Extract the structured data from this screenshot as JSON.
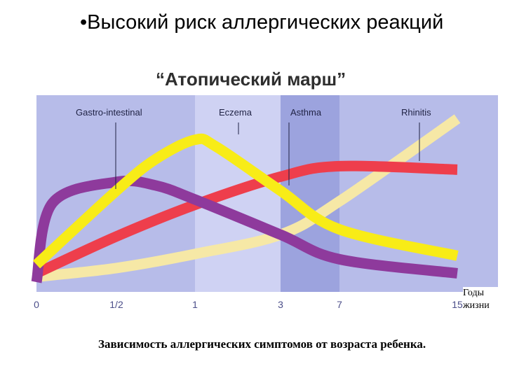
{
  "slide": {
    "bullet": "•Высокий риск аллергических реакций",
    "chart_title": "“Атопический марш”",
    "years_label_line1": "Годы",
    "years_label_line2": "жизни",
    "caption": "Зависимость аллергических симптомов от возраста ребенка."
  },
  "colors": {
    "plot_background": "#b7bce9",
    "band_highlight": "#cfd2f3",
    "band_dark": "#9ca3de",
    "gastro": "#8e3a9c",
    "eczema": "#f8ec17",
    "asthma": "#ee3e4c",
    "rhinitis": "#f6e8a6"
  },
  "chart_data": {
    "type": "line",
    "title": "“Атопический марш”",
    "xlabel": "Годы жизни",
    "ylabel": "",
    "x_ticks": [
      "0",
      "1/2",
      "1",
      "3",
      "7",
      "15"
    ],
    "bands": [
      {
        "from": "1",
        "to": "3",
        "shade": "light"
      },
      {
        "from": "3",
        "to": "7",
        "shade": "dark"
      }
    ],
    "series": [
      {
        "name": "Gastro-intestinal",
        "color": "#8e3a9c",
        "x": [
          "0",
          "0.1",
          "1/2",
          "0.75",
          "1",
          "3",
          "7",
          "15"
        ],
        "y": [
          0.0,
          0.45,
          0.57,
          0.55,
          0.47,
          0.27,
          0.13,
          0.05
        ]
      },
      {
        "name": "Eczema",
        "color": "#f8ec17",
        "x": [
          "0",
          "1/2",
          "0.75",
          "1",
          "1.5",
          "3",
          "7",
          "15"
        ],
        "y": [
          0.1,
          0.52,
          0.7,
          0.81,
          0.77,
          0.52,
          0.3,
          0.15
        ]
      },
      {
        "name": "Asthma",
        "color": "#ee3e4c",
        "x": [
          "0",
          "1/2",
          "1",
          "3",
          "7",
          "15"
        ],
        "y": [
          0.05,
          0.26,
          0.44,
          0.6,
          0.66,
          0.64
        ]
      },
      {
        "name": "Rhinitis",
        "color": "#f6e8a6",
        "x": [
          "0",
          "1/2",
          "1",
          "3",
          "7",
          "15"
        ],
        "y": [
          0.03,
          0.08,
          0.16,
          0.27,
          0.46,
          0.93
        ]
      }
    ]
  }
}
